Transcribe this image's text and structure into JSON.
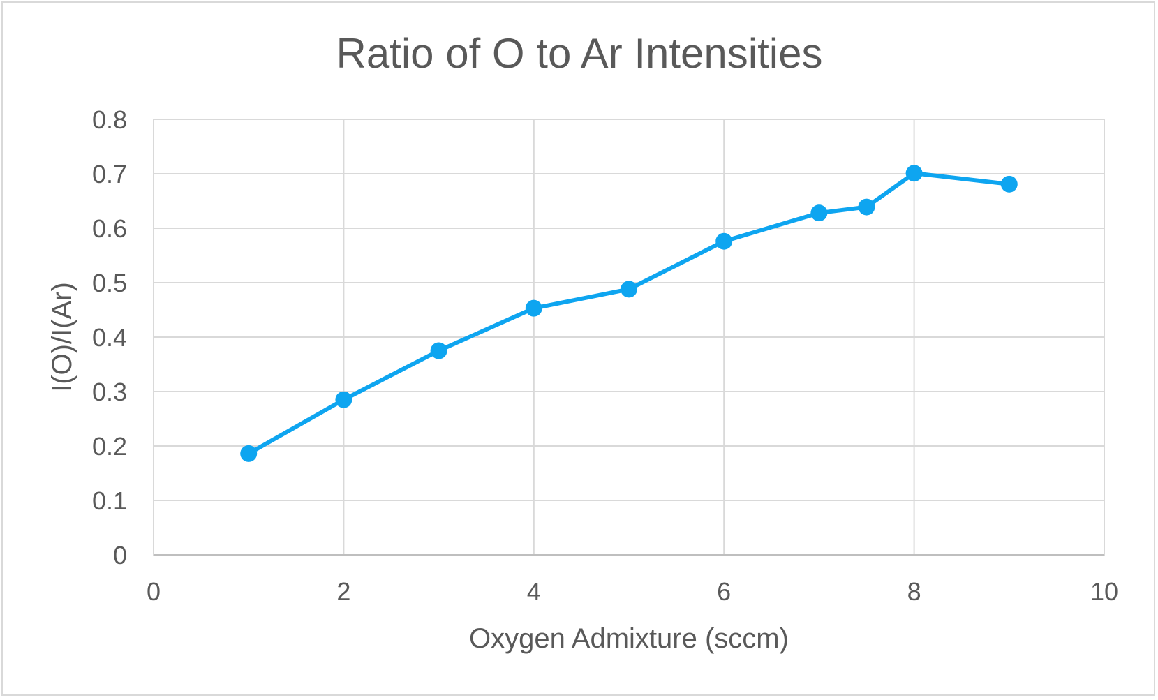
{
  "chart_data": {
    "type": "line",
    "title": "Ratio of O to Ar Intensities",
    "xlabel": "Oxygen Admixture (sccm)",
    "ylabel": "I(O)/I(Ar)",
    "xlim": [
      0,
      10
    ],
    "ylim": [
      0,
      0.8
    ],
    "x_ticks": [
      "0",
      "2",
      "4",
      "6",
      "8",
      "10"
    ],
    "y_ticks": [
      "0",
      "0.1",
      "0.2",
      "0.3",
      "0.4",
      "0.5",
      "0.6",
      "0.7",
      "0.8"
    ],
    "grid": true,
    "legend": "none",
    "series": [
      {
        "color": "#0ea5f0",
        "marker": "circle",
        "points": [
          {
            "x": 1,
            "y": 0.186
          },
          {
            "x": 2,
            "y": 0.285
          },
          {
            "x": 3,
            "y": 0.375
          },
          {
            "x": 4,
            "y": 0.453
          },
          {
            "x": 5,
            "y": 0.488
          },
          {
            "x": 6,
            "y": 0.576
          },
          {
            "x": 7,
            "y": 0.628
          },
          {
            "x": 7.5,
            "y": 0.639
          },
          {
            "x": 8,
            "y": 0.701
          },
          {
            "x": 9,
            "y": 0.681
          }
        ]
      }
    ]
  }
}
